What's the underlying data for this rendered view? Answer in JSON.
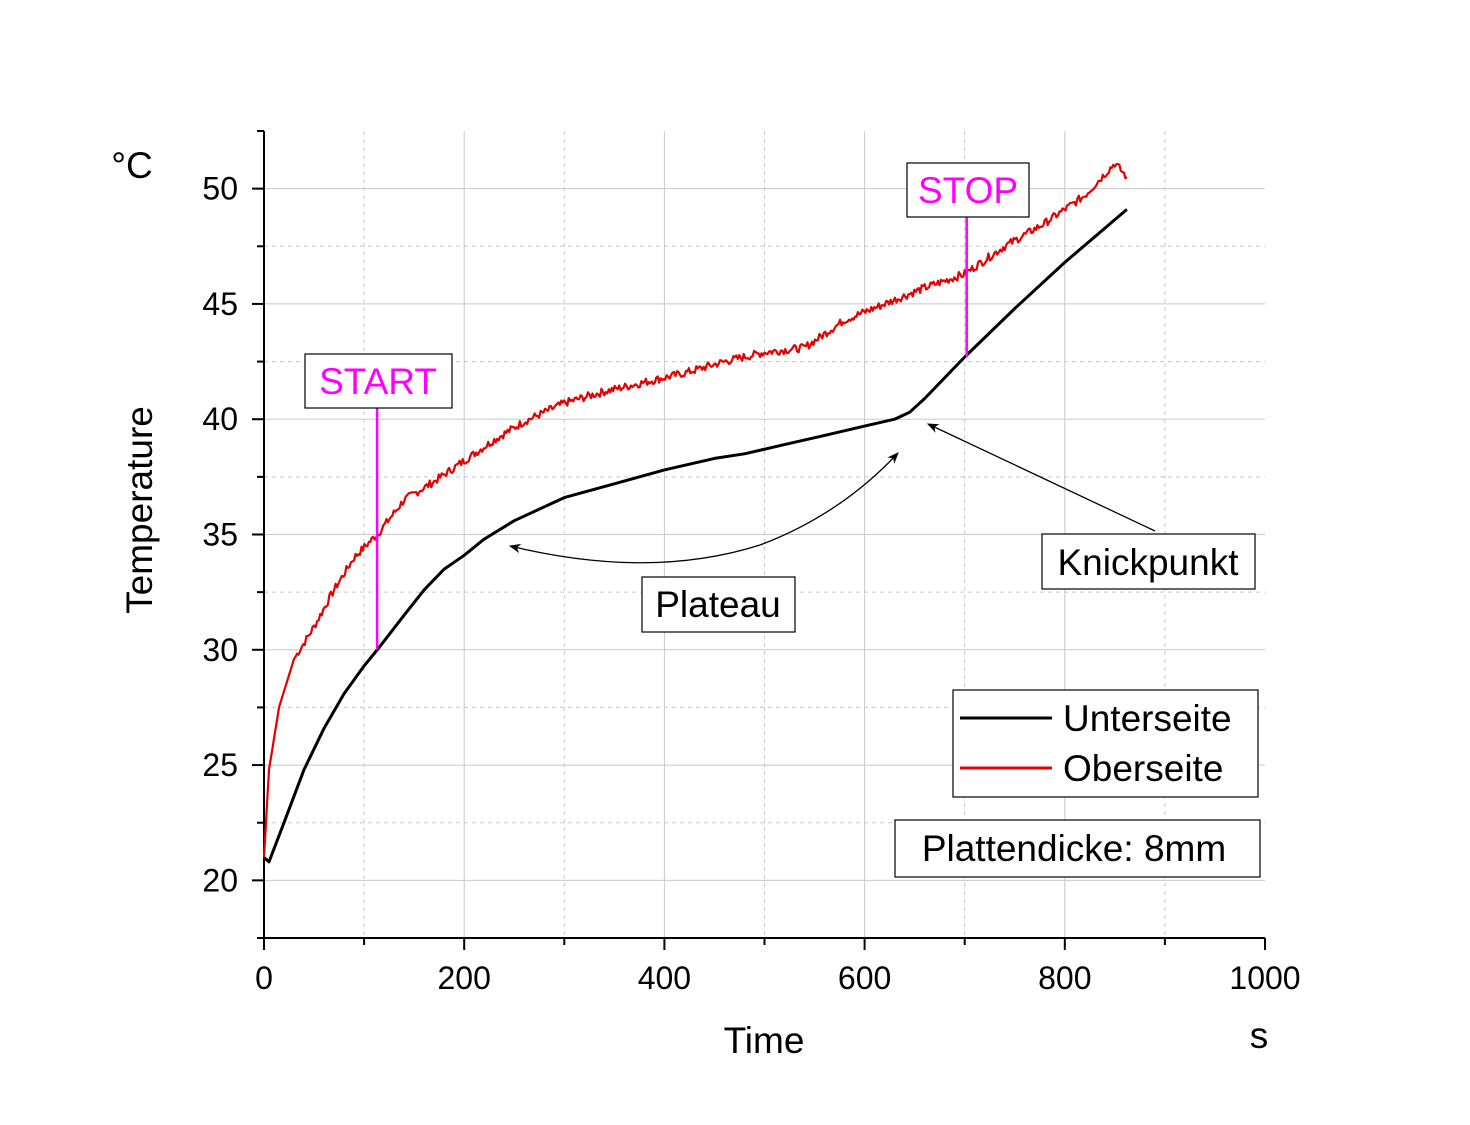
{
  "chart_data": {
    "type": "line",
    "xlabel": "Time",
    "xunit": "s",
    "ylabel": "Temperature",
    "yunit": "°C",
    "xlim": [
      0,
      1000
    ],
    "ylim": [
      17.5,
      52.5
    ],
    "xticks": [
      "0",
      "200",
      "400",
      "600",
      "800",
      "1000"
    ],
    "yticks": [
      "20",
      "25",
      "30",
      "35",
      "40",
      "45",
      "50"
    ],
    "grid": true,
    "legend_position": "bottom-right",
    "series": [
      {
        "name": "Unterseite",
        "color": "#000000",
        "x": [
          0,
          5,
          20,
          40,
          60,
          80,
          100,
          115,
          140,
          160,
          180,
          200,
          220,
          250,
          300,
          350,
          400,
          450,
          480,
          520,
          560,
          600,
          630,
          645,
          660,
          700,
          750,
          800,
          862
        ],
        "y": [
          21.0,
          20.8,
          22.5,
          24.8,
          26.6,
          28.1,
          29.3,
          30.1,
          31.5,
          32.6,
          33.5,
          34.1,
          34.8,
          35.6,
          36.6,
          37.2,
          37.8,
          38.3,
          38.5,
          38.9,
          39.3,
          39.7,
          40.0,
          40.3,
          40.9,
          42.7,
          44.8,
          46.8,
          49.1
        ]
      },
      {
        "name": "Oberseite",
        "color": "#e60000",
        "x": [
          0,
          5,
          15,
          30,
          50,
          70,
          90,
          115,
          140,
          170,
          200,
          230,
          260,
          300,
          340,
          380,
          420,
          460,
          500,
          540,
          580,
          620,
          660,
          700,
          740,
          780,
          820,
          850,
          862
        ],
        "y": [
          21.0,
          24.8,
          27.5,
          29.6,
          31.0,
          32.6,
          34.0,
          35.1,
          36.5,
          37.3,
          38.2,
          39.1,
          39.9,
          40.7,
          41.2,
          41.6,
          42.0,
          42.5,
          42.9,
          43.1,
          44.3,
          45.0,
          45.7,
          46.3,
          47.5,
          48.5,
          49.7,
          51.1,
          50.5
        ]
      }
    ],
    "annotations": {
      "start_label": "START",
      "stop_label": "STOP",
      "plateau_label": "Plateau",
      "knick_label": "Knickpunkt",
      "note": "Plattendicke: 8mm",
      "start_x": 113,
      "stop_x": 702
    }
  }
}
